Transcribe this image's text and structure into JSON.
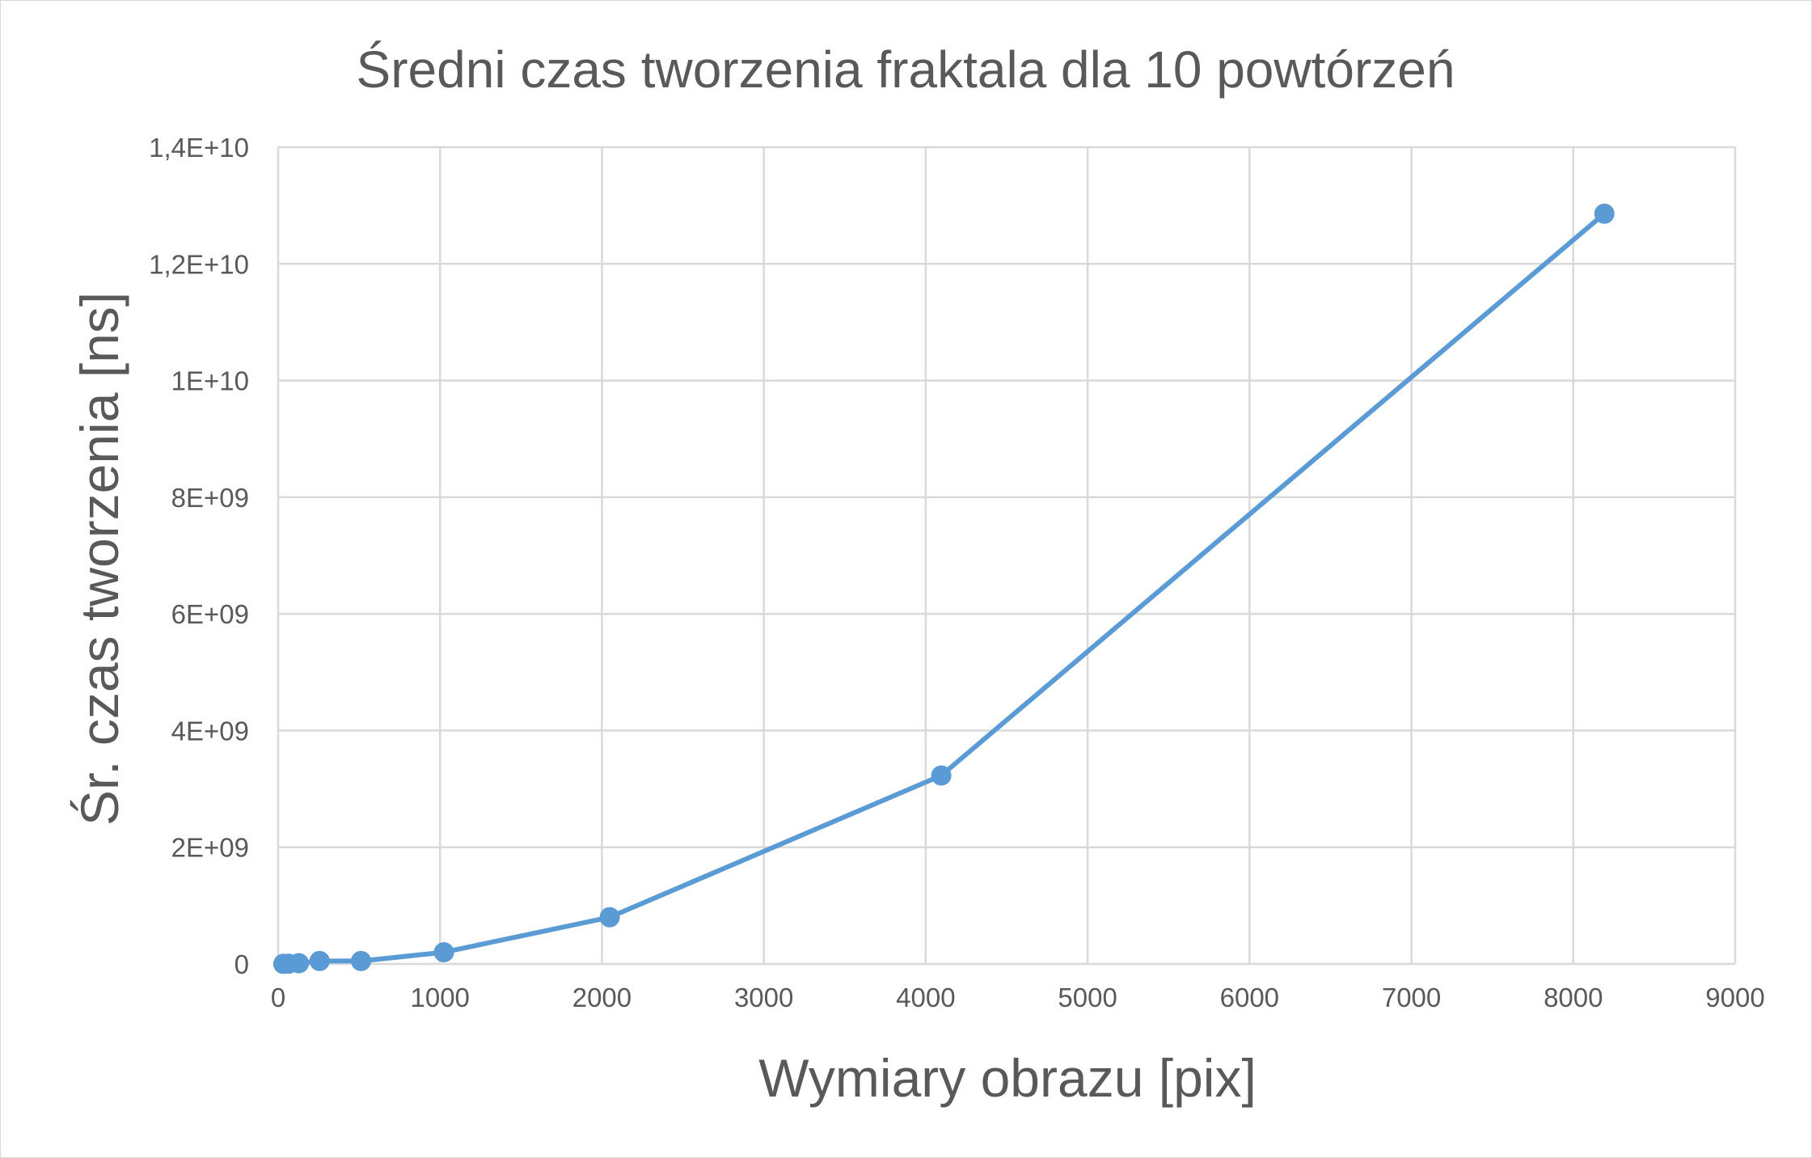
{
  "chart_data": {
    "type": "scatter",
    "title": "Średni czas tworzenia fraktala dla 10 powtórzeń",
    "xlabel": "Wymiary obrazu [pix]",
    "ylabel": "Śr. czas tworzenia [ns]",
    "xlim": [
      0,
      9000
    ],
    "ylim": [
      0,
      14000000000
    ],
    "x_ticks": [
      0,
      1000,
      2000,
      3000,
      4000,
      5000,
      6000,
      7000,
      8000,
      9000
    ],
    "x_tick_labels": [
      "0",
      "1000",
      "2000",
      "3000",
      "4000",
      "5000",
      "6000",
      "7000",
      "8000",
      "9000"
    ],
    "y_ticks": [
      0,
      2000000000,
      4000000000,
      6000000000,
      8000000000,
      10000000000,
      12000000000,
      14000000000
    ],
    "y_tick_labels": [
      "0",
      "2E+09",
      "4E+09",
      "6E+09",
      "8E+09",
      "1E+10",
      "1,2E+10",
      "1,4E+10"
    ],
    "grid": true,
    "legend": "none",
    "color": "#5b9bd5",
    "series": [
      {
        "x": [
          32,
          64,
          128,
          256,
          512,
          1024,
          2048,
          4096,
          8192
        ],
        "y": [
          1000000,
          3000000,
          12000000,
          50000000,
          50000000,
          200000000,
          800000000,
          3230000000,
          12860000000
        ]
      }
    ]
  }
}
